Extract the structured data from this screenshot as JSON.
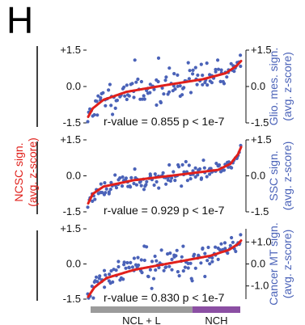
{
  "panel_letter": "H",
  "left_axis_label": [
    "NCSC sign.",
    "(avg. z-score)"
  ],
  "colors": {
    "fit": "#e0201b",
    "points": "#4a62b8",
    "ncl_bar": "#9b9b9b",
    "nch_bar": "#8b4fa3",
    "left_label": "#e0201b",
    "right_label": "#4a62b8"
  },
  "groups": [
    {
      "label": "NCL + L",
      "share": 0.68,
      "color": "#9b9b9b"
    },
    {
      "label": "NCH",
      "share": 0.32,
      "color": "#8b4fa3"
    }
  ],
  "chart_data": [
    {
      "type": "scatter",
      "left_ticks": [
        "+1.5",
        "0.0",
        "-1.5"
      ],
      "right_ticks": [
        "+1.5",
        "0.0",
        "-1.5"
      ],
      "left_range": [
        -1.5,
        1.5
      ],
      "right_range": [
        -1.5,
        1.5
      ],
      "right_label": [
        "Glio. mes. sign.",
        "(avg. z-score)"
      ],
      "stat": "r-value = 0.855  p < 1e-7",
      "fit_knots": [
        [
          0,
          -1.25
        ],
        [
          0.03,
          -0.9
        ],
        [
          0.1,
          -0.55
        ],
        [
          0.25,
          -0.22
        ],
        [
          0.5,
          0.05
        ],
        [
          0.75,
          0.3
        ],
        [
          0.9,
          0.55
        ],
        [
          0.97,
          0.85
        ],
        [
          1,
          1.05
        ]
      ],
      "spread": 0.38,
      "seed": 11
    },
    {
      "type": "scatter",
      "left_ticks": [
        "+1.5",
        "0.0",
        "-1.5"
      ],
      "right_ticks": [
        "+1.5",
        "0.0",
        "-1.5"
      ],
      "left_range": [
        -1.5,
        1.5
      ],
      "right_range": [
        -1.5,
        1.5
      ],
      "right_label": [
        "SSC sign.",
        "(avg. z-score)"
      ],
      "stat": "r-value = 0.929  p < 1e-7",
      "fit_knots": [
        [
          0,
          -1.15
        ],
        [
          0.03,
          -0.75
        ],
        [
          0.1,
          -0.45
        ],
        [
          0.3,
          -0.18
        ],
        [
          0.6,
          0.05
        ],
        [
          0.85,
          0.25
        ],
        [
          0.93,
          0.5
        ],
        [
          0.98,
          0.9
        ],
        [
          1,
          1.2
        ]
      ],
      "spread": 0.22,
      "seed": 23
    },
    {
      "type": "scatter",
      "left_ticks": [
        "+1.5",
        "0.0",
        "-1.5"
      ],
      "right_ticks": [
        "+1.0",
        "0.0",
        "-1.0"
      ],
      "left_range": [
        -1.5,
        1.5
      ],
      "right_range": [
        -1.6,
        1.6
      ],
      "right_label": [
        "Cancer MT sign.",
        "(avg. z-score)"
      ],
      "stat": "r-value = 0.830  p < 1e-7",
      "fit_knots": [
        [
          0,
          -1.4
        ],
        [
          0.04,
          -1.0
        ],
        [
          0.12,
          -0.6
        ],
        [
          0.3,
          -0.25
        ],
        [
          0.55,
          0.05
        ],
        [
          0.8,
          0.35
        ],
        [
          0.92,
          0.6
        ],
        [
          0.98,
          0.85
        ],
        [
          1,
          1.0
        ]
      ],
      "spread": 0.4,
      "seed": 37
    }
  ]
}
